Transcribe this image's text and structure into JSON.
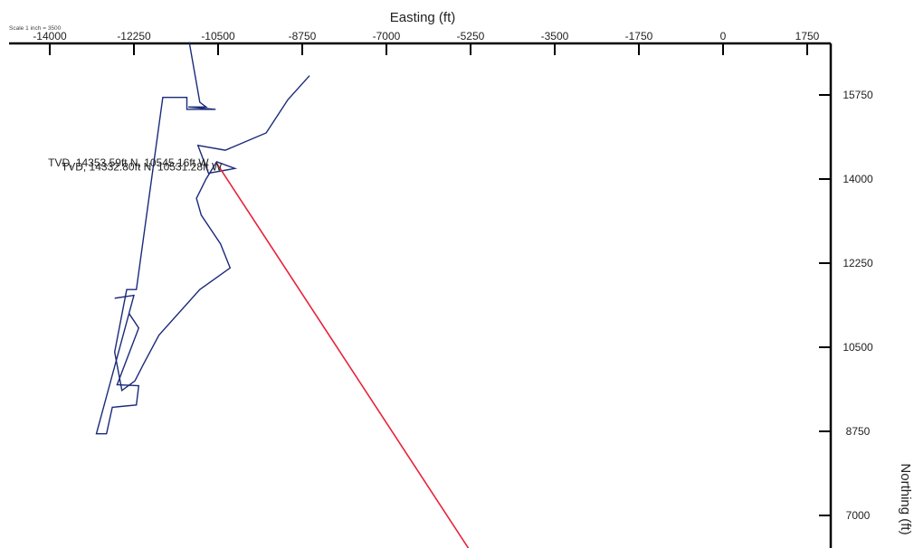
{
  "chart_data": {
    "type": "line",
    "scale_note": "Scale 1 inch = 3500",
    "xlabel": "Easting (ft)",
    "ylabel": "Northing (ft)",
    "x_ticks": [
      "-14000",
      "-12250",
      "-10500",
      "-8750",
      "-7000",
      "-5250",
      "-3500",
      "-1750",
      "0",
      "1750"
    ],
    "x_tick_values": [
      -14000,
      -12250,
      -10500,
      -8750,
      -7000,
      -5250,
      -3500,
      -1750,
      0,
      1750
    ],
    "y_ticks": [
      "15750",
      "14000",
      "12250",
      "10500",
      "8750",
      "7000"
    ],
    "y_tick_values": [
      15750,
      14000,
      12250,
      10500,
      8750,
      7000
    ],
    "xlim": [
      -15000,
      2250
    ],
    "ylim": [
      6250,
      17300
    ],
    "annotations": [
      {
        "text": "TVD, 14353.59ft N, 10545.16ft W",
        "x": -10545.16,
        "y": 14353.59
      },
      {
        "text": "TVD, 14332.80ft N, 10531.28ft W",
        "x": -10531.28,
        "y": 14332.8
      }
    ],
    "series": [
      {
        "color": "#1a2a7a",
        "points": [
          [
            -11100,
            16850
          ],
          [
            -10880,
            15600
          ],
          [
            -10750,
            15500
          ],
          [
            -11120,
            15500
          ],
          [
            -10550,
            15450
          ],
          [
            -11100,
            15450
          ],
          [
            -11150,
            15450
          ],
          [
            -11150,
            15700
          ],
          [
            -11650,
            15700
          ],
          [
            -12200,
            11700
          ],
          [
            -12400,
            11700
          ],
          [
            -12650,
            10400
          ],
          [
            -12500,
            9600
          ],
          [
            -12230,
            9800
          ],
          [
            -12050,
            10150
          ],
          [
            -11730,
            10750
          ],
          [
            -10880,
            11700
          ],
          [
            -10250,
            12150
          ],
          [
            -10450,
            12650
          ],
          [
            -10850,
            13250
          ],
          [
            -10950,
            13600
          ],
          [
            -10750,
            14000
          ],
          [
            -10530,
            14360
          ],
          [
            -10150,
            14220
          ],
          [
            -10700,
            14120
          ],
          [
            -10920,
            14700
          ],
          [
            -10350,
            14600
          ],
          [
            -9500,
            14960
          ],
          [
            -9050,
            15650
          ],
          [
            -8600,
            16150
          ]
        ]
      },
      {
        "color": "#1a2a7a",
        "points": [
          [
            -12350,
            11200
          ],
          [
            -12150,
            10900
          ],
          [
            -12600,
            9720
          ],
          [
            -12150,
            9700
          ],
          [
            -12200,
            9300
          ],
          [
            -12700,
            9250
          ],
          [
            -12820,
            8700
          ],
          [
            -13030,
            8700
          ],
          [
            -12250,
            11580
          ],
          [
            -12650,
            11520
          ]
        ]
      },
      {
        "color": "#e8213a",
        "points": [
          [
            -10531.28,
            14332.8
          ],
          [
            -5250,
            6250
          ]
        ]
      }
    ]
  }
}
